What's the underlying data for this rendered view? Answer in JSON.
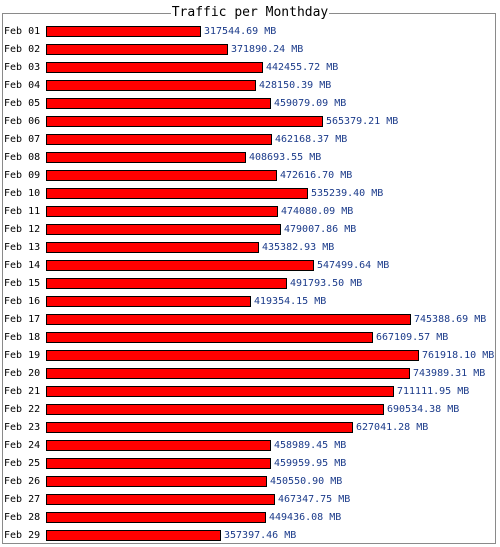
{
  "chart_data": {
    "type": "bar",
    "orientation": "horizontal",
    "title": "Traffic per Monthday",
    "unit": "MB",
    "grid": false,
    "legend": "none",
    "colors": {
      "bar": "#ff0000",
      "bar_border": "#000000",
      "value_text": "#1a3a8a",
      "frame": "#8a8a8a"
    },
    "categories": [
      "Feb 01",
      "Feb 02",
      "Feb 03",
      "Feb 04",
      "Feb 05",
      "Feb 06",
      "Feb 07",
      "Feb 08",
      "Feb 09",
      "Feb 10",
      "Feb 11",
      "Feb 12",
      "Feb 13",
      "Feb 14",
      "Feb 15",
      "Feb 16",
      "Feb 17",
      "Feb 18",
      "Feb 19",
      "Feb 20",
      "Feb 21",
      "Feb 22",
      "Feb 23",
      "Feb 24",
      "Feb 25",
      "Feb 26",
      "Feb 27",
      "Feb 28",
      "Feb 29"
    ],
    "values": [
      317544.69,
      371890.24,
      442455.72,
      428150.39,
      459079.09,
      565379.21,
      462168.37,
      408693.55,
      472616.7,
      535239.4,
      474080.09,
      479007.86,
      435382.93,
      547499.64,
      491793.5,
      419354.15,
      745388.69,
      667109.57,
      761918.1,
      743989.31,
      711111.95,
      690534.38,
      627041.28,
      458989.45,
      459959.95,
      450550.9,
      467347.75,
      449436.08,
      357397.46
    ],
    "labels": [
      "317544.69 MB",
      "371890.24 MB",
      "442455.72 MB",
      "428150.39 MB",
      "459079.09 MB",
      "565379.21 MB",
      "462168.37 MB",
      "408693.55 MB",
      "472616.70 MB",
      "535239.40 MB",
      "474080.09 MB",
      "479007.86 MB",
      "435382.93 MB",
      "547499.64 MB",
      "491793.50 MB",
      "419354.15 MB",
      "745388.69 MB",
      "667109.57 MB",
      "761918.10 MB",
      "743989.31 MB",
      "711111.95 MB",
      "690534.38 MB",
      "627041.28 MB",
      "458989.45 MB",
      "459959.95 MB",
      "450550.90 MB",
      "467347.75 MB",
      "449436.08 MB",
      "357397.46 MB"
    ]
  }
}
